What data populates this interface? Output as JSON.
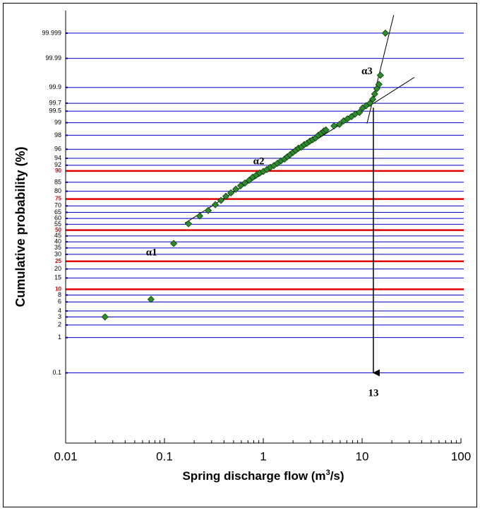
{
  "chart_data": {
    "type": "scatter",
    "xlabel": [
      "Spring discharge flow (m",
      "3",
      "/s)"
    ],
    "ylabel": "Cumulative probability (%)",
    "xscale": "log",
    "yscale": "probability",
    "xlim": [
      0.01,
      100
    ],
    "xticks": [
      0.01,
      0.1,
      1,
      10,
      100
    ],
    "ylim": [
      0.0002,
      99.9999
    ],
    "yticks": [
      0.1,
      1,
      2,
      3,
      4,
      6,
      8,
      15,
      20,
      30,
      35,
      40,
      45,
      55,
      60,
      65,
      70,
      80,
      85,
      92,
      94,
      96,
      98,
      99,
      99.5,
      99.7,
      99.9,
      99.99,
      99.999
    ],
    "grid": true,
    "grid_color": "#0000cc",
    "reference_lines": {
      "color": "#e00000",
      "values": [
        10,
        25,
        50,
        75,
        90
      ]
    },
    "series": [
      {
        "color": "#2e8b2e",
        "x": [
          0.025,
          0.073,
          0.124,
          0.175,
          0.227,
          0.277,
          0.327,
          0.373,
          0.418,
          0.47,
          0.527,
          0.59,
          0.652,
          0.72,
          0.78,
          0.848,
          0.92,
          1.0,
          1.086,
          1.18,
          1.28,
          1.39,
          1.51,
          1.64,
          1.75,
          1.87,
          2.0,
          2.13,
          2.27,
          2.43,
          2.6,
          2.77,
          2.96,
          3.16,
          3.38,
          3.6,
          3.85,
          4.1,
          4.3,
          5.2,
          5.9,
          6.5,
          7.1,
          7.8,
          8.5,
          9.4,
          10.1,
          11.0,
          12.0,
          12.8,
          13.4,
          14.1,
          14.8,
          15.3,
          17.2
        ],
        "values": [
          3.0,
          6.7,
          38.6,
          55.5,
          62,
          66.5,
          70.9,
          74,
          76.8,
          79,
          81.2,
          83.2,
          84.6,
          86,
          87.4,
          88.3,
          89.2,
          89.8,
          90.5,
          91.3,
          91.9,
          92.6,
          93.3,
          93.8,
          94.4,
          94.9,
          95.4,
          95.8,
          96.2,
          96.4,
          96.8,
          97,
          97.3,
          97.5,
          97.7,
          98,
          98.2,
          98.4,
          98.5,
          98.8,
          98.9,
          99.1,
          99.2,
          99.3,
          99.4,
          99.46,
          99.59,
          99.65,
          99.7,
          99.77,
          99.84,
          99.89,
          99.92,
          99.96,
          99.999
        ]
      }
    ],
    "fit_lines": [
      {
        "x": [
          0.161,
          33.8
        ],
        "y": [
          56,
          99.953
        ]
      },
      {
        "x": [
          11.2,
          20.9
        ],
        "y": [
          98.94,
          99.99984
        ]
      }
    ],
    "arrow": {
      "x": 13,
      "y": [
        99.6,
        0.1
      ]
    },
    "annotations": [
      {
        "text": "α1",
        "x": 0.074,
        "y": 31
      },
      {
        "text": "α2",
        "x": 0.9,
        "y": 93
      },
      {
        "text": "α3",
        "x": 11.2,
        "y": 99.97
      },
      {
        "text": "13",
        "x": 13,
        "y": 0.02
      }
    ]
  }
}
